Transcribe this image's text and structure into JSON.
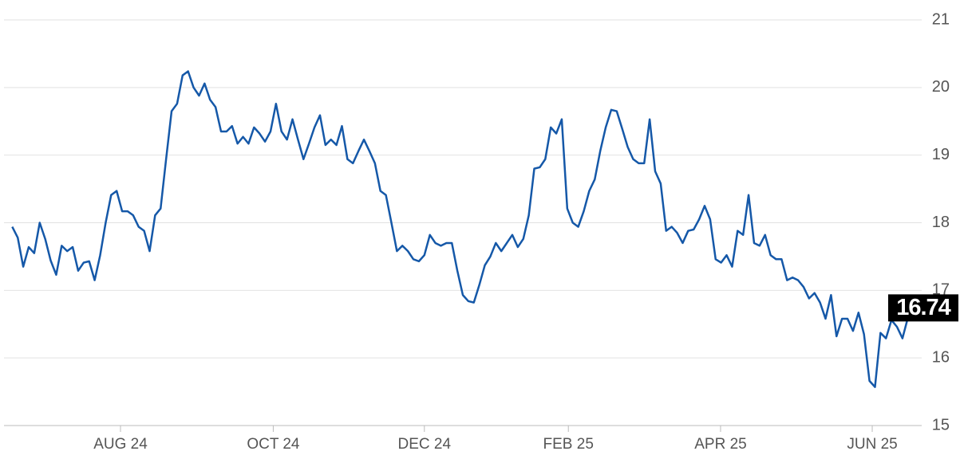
{
  "chart_data": {
    "type": "line",
    "values": [
      17.94,
      17.78,
      17.35,
      17.64,
      17.55,
      18.0,
      17.76,
      17.44,
      17.23,
      17.66,
      17.58,
      17.64,
      17.29,
      17.41,
      17.43,
      17.15,
      17.52,
      18.0,
      18.41,
      18.47,
      18.17,
      18.17,
      18.11,
      17.94,
      17.88,
      17.58,
      18.11,
      18.21,
      18.94,
      19.65,
      19.76,
      20.18,
      20.24,
      20.0,
      19.88,
      20.06,
      19.82,
      19.71,
      19.35,
      19.35,
      19.43,
      19.17,
      19.27,
      19.17,
      19.41,
      19.32,
      19.2,
      19.35,
      19.76,
      19.35,
      19.23,
      19.53,
      19.23,
      18.94,
      19.17,
      19.41,
      19.59,
      19.15,
      19.23,
      19.15,
      19.43,
      18.94,
      18.88,
      19.06,
      19.23,
      19.06,
      18.88,
      18.47,
      18.41,
      18.0,
      17.58,
      17.66,
      17.58,
      17.46,
      17.43,
      17.52,
      17.82,
      17.7,
      17.66,
      17.7,
      17.7,
      17.29,
      16.93,
      16.84,
      16.82,
      17.08,
      17.37,
      17.5,
      17.7,
      17.58,
      17.7,
      17.82,
      17.64,
      17.76,
      18.11,
      18.8,
      18.82,
      18.94,
      19.41,
      19.32,
      19.53,
      18.21,
      18.0,
      17.94,
      18.17,
      18.47,
      18.64,
      19.06,
      19.41,
      19.67,
      19.65,
      19.39,
      19.12,
      18.94,
      18.88,
      18.88,
      19.53,
      18.76,
      18.58,
      17.88,
      17.94,
      17.85,
      17.7,
      17.88,
      17.9,
      18.05,
      18.25,
      18.05,
      17.46,
      17.41,
      17.52,
      17.35,
      17.88,
      17.82,
      18.41,
      17.7,
      17.66,
      17.82,
      17.52,
      17.46,
      17.46,
      17.15,
      17.19,
      17.15,
      17.05,
      16.88,
      16.96,
      16.82,
      16.58,
      16.93,
      16.32,
      16.58,
      16.58,
      16.4,
      16.67,
      16.35,
      15.66,
      15.57,
      16.37,
      16.29,
      16.56,
      16.46,
      16.29,
      16.6,
      16.74
    ],
    "color": "#1558a8",
    "xlim": [
      -1.5,
      165.5
    ],
    "xticks": [
      {
        "value": 19.7,
        "label": "AUG 24"
      },
      {
        "value": 47.5,
        "label": "OCT 24"
      },
      {
        "value": 75.0,
        "label": "DEC 24"
      },
      {
        "value": 101.2,
        "label": "FEB 25"
      },
      {
        "value": 128.9,
        "label": "APR 25"
      },
      {
        "value": 156.5,
        "label": "JUN 25"
      }
    ],
    "ylim": [
      15,
      21
    ],
    "yticks": [
      15,
      16,
      17,
      18,
      19,
      20,
      21
    ],
    "grid": true
  }
}
